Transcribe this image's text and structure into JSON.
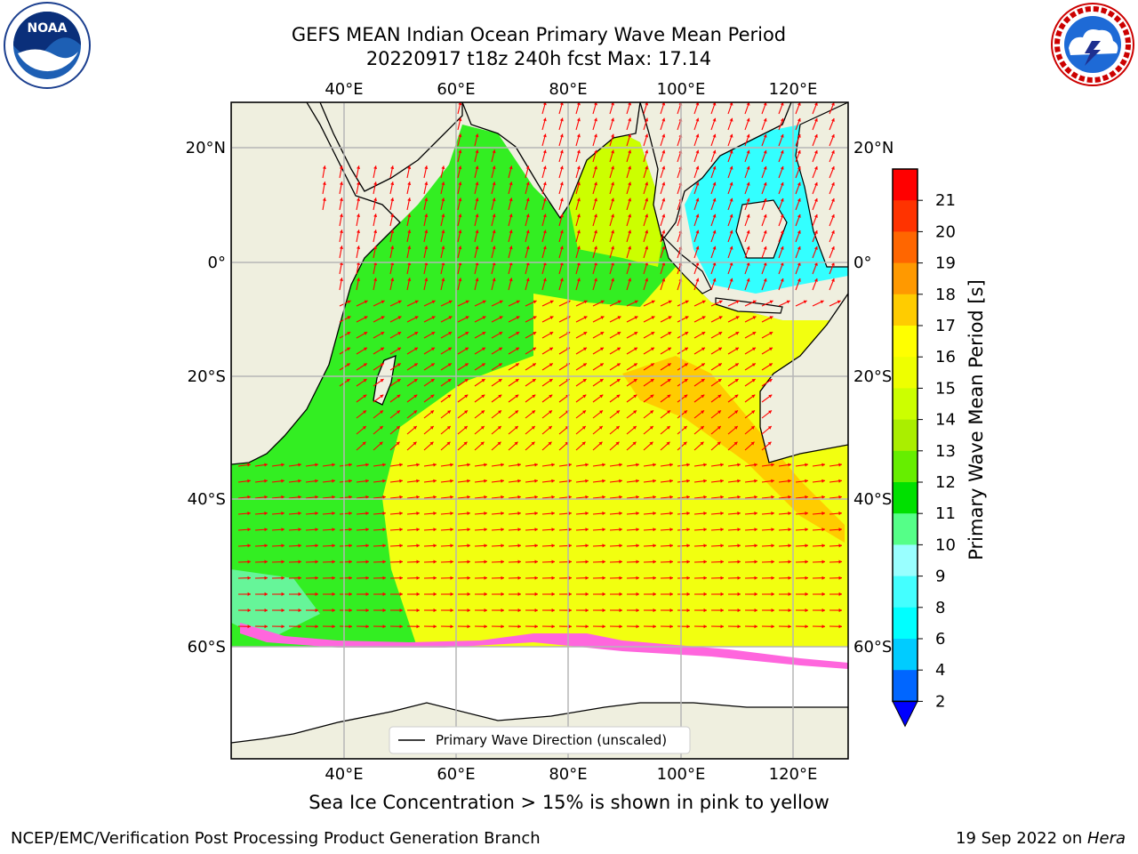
{
  "header": {
    "title_line1": "GEFS MEAN Indian Ocean Primary Wave Mean Period",
    "title_line2": "20220917 t18z 240h fcst   Max: 17.14"
  },
  "logos": {
    "left": "noara-logo",
    "right": "national-weather-service-logo"
  },
  "map": {
    "lon_ticks": [
      "40°E",
      "60°E",
      "80°E",
      "100°E",
      "120°E"
    ],
    "lat_ticks": [
      "20°N",
      "0°",
      "20°S",
      "40°S",
      "60°S"
    ],
    "legend_label": "Primary Wave Direction (unscaled)",
    "land_color": "#efefdf",
    "arrow_color": "#ff0000"
  },
  "colorbar": {
    "label": "Primary Wave Mean Period [s]",
    "tick_labels": [
      "2",
      "4",
      "6",
      "8",
      "9",
      "10",
      "11",
      "12",
      "13",
      "14",
      "15",
      "16",
      "17",
      "18",
      "19",
      "20",
      "21"
    ],
    "colors": [
      "#0066ff",
      "#00ccff",
      "#00ffff",
      "#44ffff",
      "#99ffff",
      "#55ff88",
      "#00e000",
      "#66ee00",
      "#aaee00",
      "#ccff00",
      "#eeff00",
      "#ffff00",
      "#ffcc00",
      "#ff9900",
      "#ff6600",
      "#ff3300",
      "#ff0000"
    ],
    "under_color": "#0000ff"
  },
  "caption": "Sea Ice Concentration > 15% is shown in pink to yellow",
  "footer": {
    "left": "NCEP/EMC/Verification Post Processing Product Generation Branch",
    "right_date": "19 Sep 2022 on ",
    "right_machine": "Hera"
  }
}
